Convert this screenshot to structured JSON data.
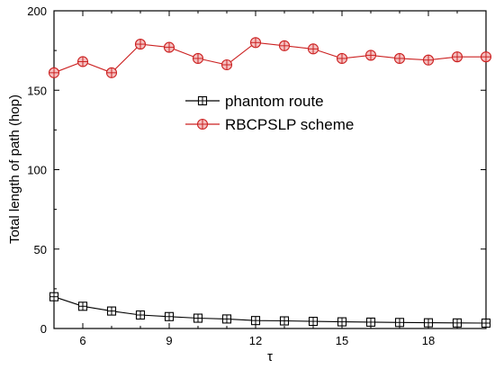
{
  "chart_data": {
    "type": "line",
    "xlabel": "τ",
    "ylabel": "Total length of path (hop)",
    "xlim": [
      5,
      20
    ],
    "ylim": [
      0,
      200
    ],
    "xticks": [
      6,
      9,
      12,
      15,
      18
    ],
    "yticks": [
      0,
      50,
      100,
      150,
      200
    ],
    "grid": false,
    "legend_position": "center",
    "x": [
      5,
      6,
      7,
      8,
      9,
      10,
      11,
      12,
      13,
      14,
      15,
      16,
      17,
      18,
      19,
      20
    ],
    "series": [
      {
        "name": "phantom route",
        "color": "#000000",
        "marker": "square-plus",
        "values": [
          20,
          14,
          11,
          8.5,
          7.5,
          6.5,
          6,
          5,
          4.8,
          4.5,
          4.2,
          4,
          3.8,
          3.6,
          3.5,
          3.4
        ]
      },
      {
        "name": "RBCPSLP scheme",
        "color": "#cc2222",
        "marker": "circle-plus",
        "values": [
          161,
          168,
          161,
          179,
          177,
          170,
          166,
          180,
          178,
          176,
          170,
          172,
          170,
          169,
          171,
          171
        ]
      }
    ]
  }
}
